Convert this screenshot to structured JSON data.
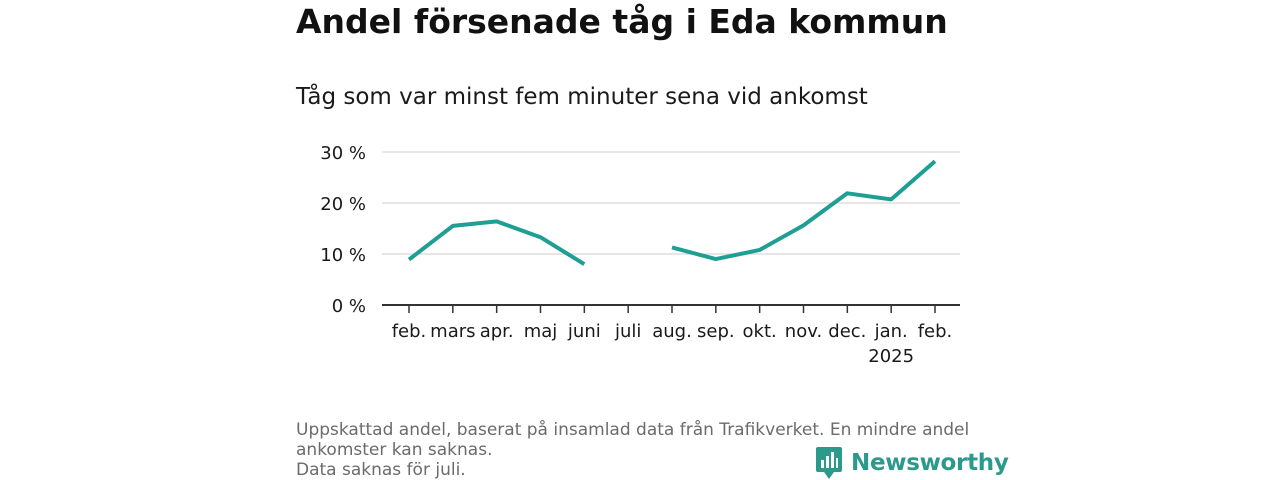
{
  "title": "Andel försenade tåg i Eda kommun",
  "subtitle": "Tåg som var minst fem minuter sena vid ankomst",
  "footnotes": [
    "Uppskattad andel, baserat på insamlad data från Trafikverket. En mindre andel ankomster kan saknas.",
    "Data saknas för juli."
  ],
  "brand": {
    "name": "Newsworthy",
    "icon": "newsworthy-logo-icon",
    "color": "#2b9a8c"
  },
  "chart_data": {
    "type": "line",
    "categories": [
      "feb.",
      "mars",
      "apr.",
      "maj",
      "juni",
      "juli",
      "aug.",
      "sep.",
      "okt.",
      "nov.",
      "dec.",
      "jan.",
      "feb."
    ],
    "category_sublabels": [
      "",
      "",
      "",
      "",
      "",
      "",
      "",
      "",
      "",
      "",
      "",
      "2025",
      ""
    ],
    "series": [
      {
        "values": [
          8.9,
          15.5,
          16.4,
          13.3,
          8.0,
          null,
          11.3,
          9.0,
          10.8,
          15.6,
          21.9,
          20.7,
          28.2
        ],
        "color": "#1f9e93"
      }
    ],
    "yticks": [
      0,
      10,
      20,
      30
    ],
    "ytick_labels": [
      "0 %",
      "10 %",
      "20 %",
      "30 %"
    ],
    "ylim": [
      0,
      30
    ],
    "grid": true,
    "legend": "none"
  }
}
